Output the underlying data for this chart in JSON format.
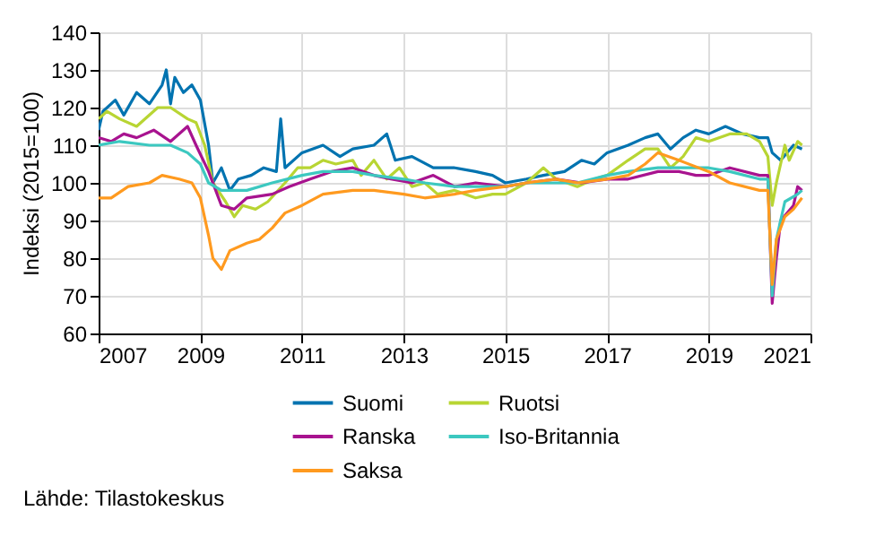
{
  "chart_data": {
    "type": "line",
    "ylabel": "Indeksi (2015=100)",
    "xlim": [
      "2007-01",
      "2021-01"
    ],
    "xticks": [
      "2007",
      "2009",
      "2011",
      "2013",
      "2015",
      "2017",
      "2019",
      "2021"
    ],
    "ylim": [
      60,
      140
    ],
    "yticks": [
      60,
      70,
      80,
      90,
      100,
      110,
      120,
      130,
      140
    ],
    "grid": true,
    "legend": "bottom",
    "annotations": [
      "Lähde: Tilastokeskus"
    ],
    "series": [
      {
        "name": "Suomi",
        "color": "#0073b0",
        "x": [
          "2007-01",
          "2007-02",
          "2007-05",
          "2007-07",
          "2007-10",
          "2008-01",
          "2008-04",
          "2008-05",
          "2008-06",
          "2008-07",
          "2008-09",
          "2008-11",
          "2009-01",
          "2009-03",
          "2009-04",
          "2009-06",
          "2009-08",
          "2009-10",
          "2010-01",
          "2010-04",
          "2010-07",
          "2010-08",
          "2010-09",
          "2011-01",
          "2011-06",
          "2011-10",
          "2012-01",
          "2012-06",
          "2012-09",
          "2012-11",
          "2013-03",
          "2013-08",
          "2014-01",
          "2014-06",
          "2014-10",
          "2015-01",
          "2015-06",
          "2015-10",
          "2016-03",
          "2016-07",
          "2016-10",
          "2017-01",
          "2017-06",
          "2017-10",
          "2018-01",
          "2018-04",
          "2018-07",
          "2018-10",
          "2019-01",
          "2019-05",
          "2019-09",
          "2020-01",
          "2020-03",
          "2020-04",
          "2020-06",
          "2020-09",
          "2020-11"
        ],
        "values": [
          114,
          119,
          122,
          118,
          124,
          121,
          126,
          130,
          121,
          128,
          124,
          126,
          122,
          110,
          100,
          104,
          98,
          101,
          102,
          104,
          103,
          117,
          104,
          108,
          110,
          107,
          109,
          110,
          113,
          106,
          107,
          104,
          104,
          103,
          102,
          100,
          101,
          102,
          103,
          106,
          105,
          108,
          110,
          112,
          113,
          109,
          112,
          114,
          113,
          115,
          113,
          112,
          112,
          108,
          106,
          110,
          109
        ]
      },
      {
        "name": "Ruotsi",
        "color": "#b8d533",
        "x": [
          "2007-01",
          "2007-03",
          "2007-06",
          "2007-10",
          "2008-03",
          "2008-06",
          "2008-10",
          "2008-12",
          "2009-02",
          "2009-04",
          "2009-07",
          "2009-09",
          "2009-11",
          "2010-02",
          "2010-05",
          "2010-09",
          "2010-12",
          "2011-03",
          "2011-06",
          "2011-09",
          "2012-01",
          "2012-03",
          "2012-06",
          "2012-09",
          "2012-12",
          "2013-03",
          "2013-06",
          "2013-09",
          "2014-01",
          "2014-06",
          "2014-10",
          "2015-01",
          "2015-06",
          "2015-10",
          "2016-01",
          "2016-06",
          "2016-10",
          "2017-01",
          "2017-06",
          "2017-10",
          "2018-01",
          "2018-04",
          "2018-07",
          "2018-10",
          "2019-01",
          "2019-06",
          "2019-10",
          "2020-01",
          "2020-03",
          "2020-04",
          "2020-05",
          "2020-07",
          "2020-08",
          "2020-10",
          "2020-11"
        ],
        "values": [
          117,
          119,
          117,
          115,
          120,
          120,
          117,
          116,
          110,
          100,
          95,
          91,
          94,
          93,
          95,
          100,
          104,
          104,
          106,
          105,
          106,
          102,
          106,
          101,
          104,
          99,
          100,
          97,
          98,
          96,
          97,
          97,
          100,
          104,
          101,
          99,
          101,
          102,
          106,
          109,
          109,
          104,
          107,
          112,
          111,
          113,
          113,
          111,
          107,
          94,
          100,
          110,
          106,
          111,
          110
        ]
      },
      {
        "name": "Ranska",
        "color": "#a8138f",
        "x": [
          "2007-01",
          "2007-04",
          "2007-07",
          "2007-10",
          "2008-02",
          "2008-06",
          "2008-10",
          "2008-12",
          "2009-03",
          "2009-06",
          "2009-09",
          "2009-12",
          "2010-06",
          "2010-10",
          "2011-03",
          "2011-08",
          "2012-01",
          "2012-06",
          "2012-10",
          "2013-03",
          "2013-08",
          "2014-01",
          "2014-06",
          "2015-01",
          "2015-06",
          "2016-01",
          "2016-07",
          "2017-01",
          "2017-06",
          "2018-01",
          "2018-06",
          "2018-10",
          "2019-01",
          "2019-06",
          "2020-01",
          "2020-03",
          "2020-04",
          "2020-05",
          "2020-06",
          "2020-09",
          "2020-10",
          "2020-11"
        ],
        "values": [
          112,
          111,
          113,
          112,
          114,
          111,
          115,
          110,
          103,
          94,
          93,
          96,
          97,
          99,
          101,
          103,
          104,
          102,
          101,
          100,
          102,
          99,
          100,
          99,
          100,
          101,
          100,
          101,
          101,
          103,
          103,
          102,
          102,
          104,
          102,
          102,
          68,
          80,
          90,
          94,
          99,
          98
        ]
      },
      {
        "name": "Iso-Britannia",
        "color": "#3cc8c0",
        "x": [
          "2007-01",
          "2007-06",
          "2008-01",
          "2008-06",
          "2008-10",
          "2009-01",
          "2009-03",
          "2009-06",
          "2009-12",
          "2010-06",
          "2011-01",
          "2011-06",
          "2012-01",
          "2012-06",
          "2013-01",
          "2013-06",
          "2014-01",
          "2014-06",
          "2015-01",
          "2015-06",
          "2016-01",
          "2016-06",
          "2017-01",
          "2017-06",
          "2018-01",
          "2018-06",
          "2019-01",
          "2019-06",
          "2020-01",
          "2020-03",
          "2020-04",
          "2020-05",
          "2020-07",
          "2020-10",
          "2020-11"
        ],
        "values": [
          110,
          111,
          110,
          110,
          108,
          105,
          100,
          98,
          98,
          100,
          102,
          103,
          103,
          102,
          101,
          100,
          99,
          99,
          99,
          100,
          100,
          100,
          102,
          103,
          104,
          104,
          104,
          103,
          101,
          101,
          70,
          85,
          95,
          97,
          98
        ]
      },
      {
        "name": "Saksa",
        "color": "#ff9a1f",
        "x": [
          "2007-01",
          "2007-04",
          "2007-08",
          "2008-01",
          "2008-04",
          "2008-08",
          "2008-11",
          "2009-01",
          "2009-03",
          "2009-04",
          "2009-06",
          "2009-08",
          "2009-12",
          "2010-03",
          "2010-06",
          "2010-09",
          "2011-01",
          "2011-06",
          "2012-01",
          "2012-06",
          "2013-01",
          "2013-06",
          "2014-01",
          "2014-06",
          "2015-01",
          "2015-06",
          "2016-01",
          "2016-06",
          "2017-01",
          "2017-06",
          "2017-10",
          "2018-01",
          "2018-06",
          "2019-01",
          "2019-06",
          "2020-01",
          "2020-03",
          "2020-04",
          "2020-05",
          "2020-07",
          "2020-09",
          "2020-11"
        ],
        "values": [
          96,
          96,
          99,
          100,
          102,
          101,
          100,
          96,
          86,
          80,
          77,
          82,
          84,
          85,
          88,
          92,
          94,
          97,
          98,
          98,
          97,
          96,
          97,
          98,
          99,
          100,
          101,
          100,
          101,
          102,
          105,
          108,
          106,
          103,
          100,
          98,
          98,
          73,
          85,
          91,
          93,
          96
        ]
      }
    ]
  }
}
